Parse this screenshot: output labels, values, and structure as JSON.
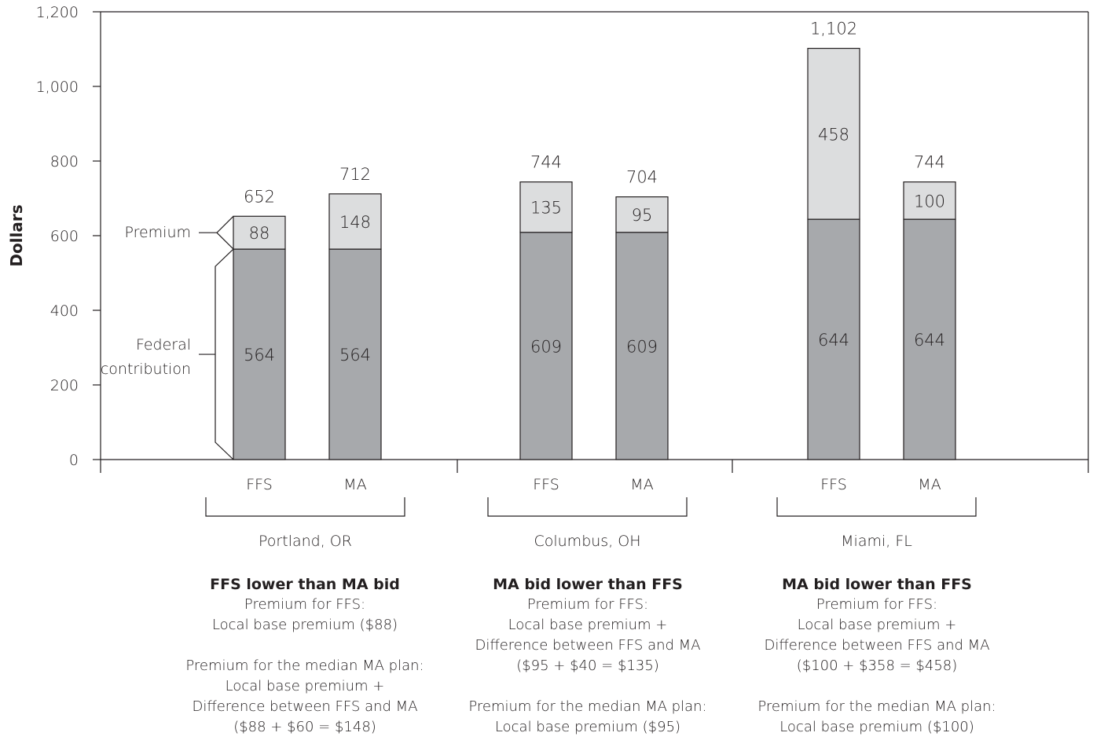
{
  "chart_data": {
    "type": "bar",
    "stacked": true,
    "ylabel": "Dollars",
    "ylim": [
      0,
      1200
    ],
    "yticks": [
      "0",
      "200",
      "400",
      "600",
      "800",
      "1,000",
      "1,200"
    ],
    "ytick_values": [
      0,
      200,
      400,
      600,
      800,
      1000,
      1200
    ],
    "grid": false,
    "groups": [
      {
        "name": "Portland, OR",
        "bars": [
          {
            "label": "FFS",
            "federal": 564,
            "premium": 88,
            "total": 652,
            "federal_label": "564",
            "premium_label": "88",
            "total_label": "652"
          },
          {
            "label": "MA",
            "federal": 564,
            "premium": 148,
            "total": 712,
            "federal_label": "564",
            "premium_label": "148",
            "total_label": "712"
          }
        ]
      },
      {
        "name": "Columbus, OH",
        "bars": [
          {
            "label": "FFS",
            "federal": 609,
            "premium": 135,
            "total": 744,
            "federal_label": "609",
            "premium_label": "135",
            "total_label": "744"
          },
          {
            "label": "MA",
            "federal": 609,
            "premium": 95,
            "total": 704,
            "federal_label": "609",
            "premium_label": "95",
            "total_label": "704"
          }
        ]
      },
      {
        "name": "Miami, FL",
        "bars": [
          {
            "label": "FFS",
            "federal": 644,
            "premium": 458,
            "total": 1102,
            "federal_label": "644",
            "premium_label": "458",
            "total_label": "1,102"
          },
          {
            "label": "MA",
            "federal": 644,
            "premium": 100,
            "total": 744,
            "federal_label": "644",
            "premium_label": "100",
            "total_label": "744"
          }
        ]
      }
    ],
    "annotations": {
      "premium": "Premium",
      "federal_line1": "Federal",
      "federal_line2": "contribution"
    },
    "colors": {
      "federal": "#a7a9ac",
      "premium": "#dcddde",
      "outline": "#231f20"
    }
  },
  "captions": [
    {
      "heading": "FFS lower than MA bid",
      "lines": [
        "Premium for FFS:",
        "Local base premium ($88)",
        "",
        "Premium for the median MA plan:",
        "Local base premium +",
        "Difference between FFS and MA",
        "($88 + $60 = $148)"
      ]
    },
    {
      "heading": "MA bid lower than FFS",
      "lines": [
        "Premium for FFS:",
        "Local base premium +",
        "Difference between FFS and MA",
        "($95 + $40 = $135)",
        "",
        "Premium for the median MA plan:",
        "Local base premium ($95)"
      ]
    },
    {
      "heading": "MA bid lower than FFS",
      "lines": [
        "Premium for FFS:",
        "Local base premium +",
        "Difference between FFS and MA",
        "($100 + $358 = $458)",
        "",
        "Premium for the median MA plan:",
        "Local base premium ($100)"
      ]
    }
  ]
}
